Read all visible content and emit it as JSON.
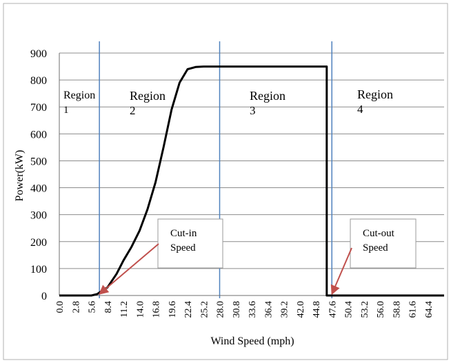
{
  "chart_data": {
    "type": "line",
    "title": "",
    "xlabel": "Wind Speed (mph)",
    "ylabel": "Power(kW)",
    "xlim": [
      0,
      67.2
    ],
    "ylim": [
      0,
      900
    ],
    "grid": true,
    "x_ticks": [
      "0.0",
      "2.8",
      "5.6",
      "8.4",
      "11.2",
      "14.0",
      "16.8",
      "19.6",
      "22.4",
      "25.2",
      "28.0",
      "30.8",
      "33.6",
      "36.4",
      "39.2",
      "42.0",
      "44.8",
      "47.6",
      "50.4",
      "53.2",
      "56.0",
      "58.8",
      "61.6",
      "64.4"
    ],
    "y_ticks": [
      0,
      100,
      200,
      300,
      400,
      500,
      600,
      700,
      800,
      900
    ],
    "series": [
      {
        "x": [
          0,
          5.6,
          6.6,
          7.3,
          8.4,
          10.0,
          11.2,
          12.6,
          14.0,
          15.4,
          16.8,
          18.2,
          19.6,
          21.0,
          22.4,
          23.8,
          25.2,
          26.6,
          28.0,
          29.4,
          30.8,
          33.6,
          36.4,
          39.2,
          42.0,
          44.8,
          46.7,
          46.7,
          48.5,
          67.2
        ],
        "y": [
          0,
          0,
          5,
          15,
          30,
          80,
          130,
          180,
          240,
          320,
          420,
          550,
          690,
          790,
          840,
          848,
          850,
          850,
          850,
          850,
          850,
          850,
          850,
          850,
          850,
          850,
          850,
          0,
          0,
          0
        ]
      }
    ],
    "region_lines_x": [
      7.0,
      28.0,
      47.6
    ],
    "regions": [
      {
        "name": "Region",
        "number": "1"
      },
      {
        "name": "Region",
        "number": "2"
      },
      {
        "name": "Region",
        "number": "3"
      },
      {
        "name": "Region",
        "number": "4"
      }
    ],
    "annotations": [
      {
        "line1": "Cut-in",
        "line2": "Speed",
        "target": [
          7.0,
          0
        ]
      },
      {
        "line1": "Cut-out",
        "line2": "Speed",
        "target": [
          47.6,
          0
        ]
      }
    ]
  },
  "colors": {
    "curve": "#000000",
    "grid": "#8c8c8c",
    "region_line": "#4f81bd",
    "arrow": "#c0504d",
    "box_border": "#9a9a9a"
  }
}
